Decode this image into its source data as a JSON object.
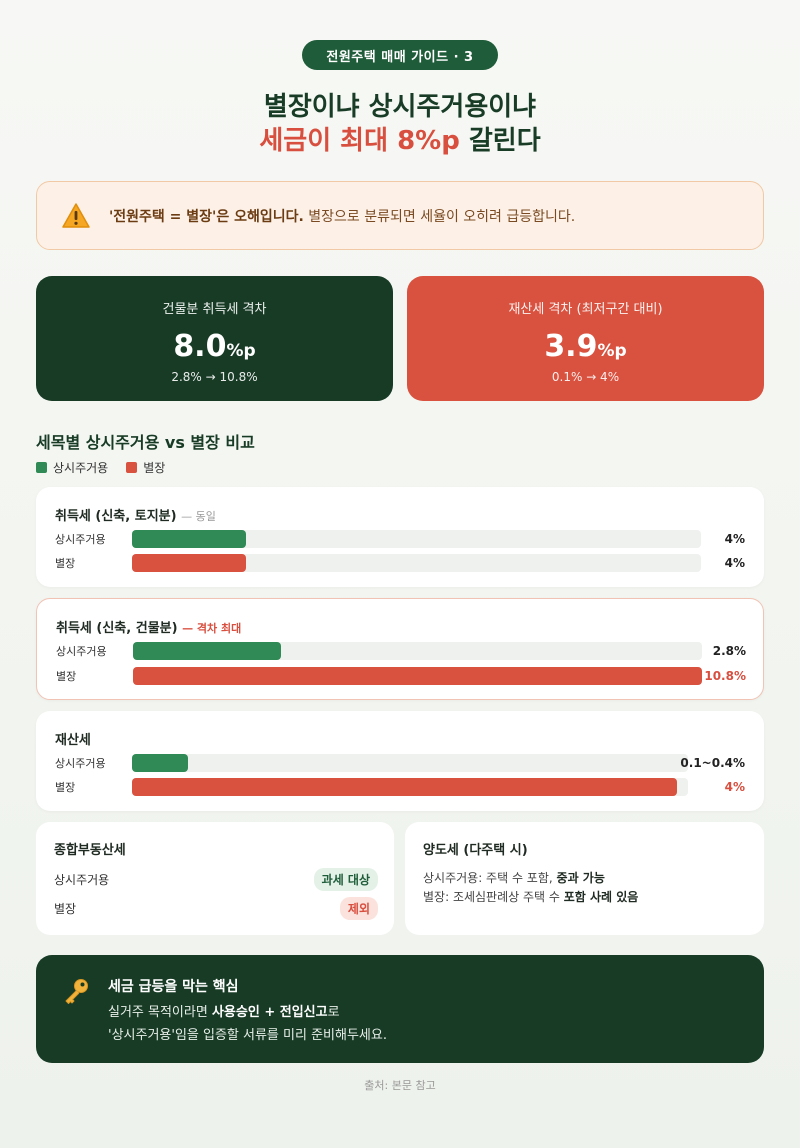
{
  "header": {
    "pill": "전원주택 매매 가이드 · 3",
    "title_line1": "별장이냐 상시주거용이냐",
    "title_line2_highlight": "세금이 최대 8%p",
    "title_line2_rest": " 갈린다"
  },
  "warning": {
    "icon": "warning-triangle-icon",
    "bold": "'전원주택 = 별장'은 오해입니다.",
    "text": " 별장으로 분류되면 세율이 오히려 급등합니다."
  },
  "stats": [
    {
      "label": "건물분 취득세 격차",
      "value": "8.0",
      "unit": "%p",
      "range": "2.8% → 10.8%"
    },
    {
      "label": "재산세 격차 (최저구간 대비)",
      "value": "3.9",
      "unit": "%p",
      "range": "0.1% → 4%"
    }
  ],
  "comparison": {
    "title": "세목별 상시주거용 vs 별장 비교",
    "legend": [
      {
        "label": "상시주거용",
        "color": "#2f8a56"
      },
      {
        "label": "별장",
        "color": "#d9513f"
      }
    ]
  },
  "chart_data": [
    {
      "type": "bar",
      "title": "취득세 (신축, 토지분)",
      "note": "— 동일",
      "categories": [
        "상시주거용",
        "별장"
      ],
      "values": [
        4,
        4
      ],
      "value_labels": [
        "4%",
        "4%"
      ],
      "unit": "%",
      "fill_fraction": [
        0.2,
        0.2
      ]
    },
    {
      "type": "bar",
      "title": "취득세 (신축, 건물분)",
      "note": "— 격차 최대",
      "categories": [
        "상시주거용",
        "별장"
      ],
      "values": [
        2.8,
        10.8
      ],
      "value_labels": [
        "2.8%",
        "10.8%"
      ],
      "unit": "%",
      "fill_fraction": [
        0.26,
        1.0
      ]
    },
    {
      "type": "bar",
      "title": "재산세",
      "note": "",
      "categories": [
        "상시주거용",
        "별장"
      ],
      "values": [
        0.4,
        4
      ],
      "value_labels": [
        "0.1~0.4%",
        "4%"
      ],
      "unit": "%",
      "fill_fraction": [
        0.1,
        0.98
      ]
    }
  ],
  "comprehensive_tax": {
    "title": "종합부동산세",
    "rows": [
      {
        "label": "상시주거용",
        "tag": "과세 대상"
      },
      {
        "label": "별장",
        "tag": "제외"
      }
    ]
  },
  "transfer_tax": {
    "title": "양도세 (다주택 시)",
    "line1_text": "상시주거용: 주택 수 포함, ",
    "line1_bold": "중과 가능",
    "line2_text": "별장: 조세심판례상 주택 수 ",
    "line2_bold": "포함 사례 있음"
  },
  "tip": {
    "icon": "key-icon",
    "title": "세금 급등을 막는 핵심",
    "line1_pre": "실거주 목적이라면 ",
    "line1_bold": "사용승인 + 전입신고",
    "line1_post": "로",
    "line2": "'상시주거용'임을 입증할 서류를 미리 준비해두세요."
  },
  "source": "출처: 본문 참고"
}
